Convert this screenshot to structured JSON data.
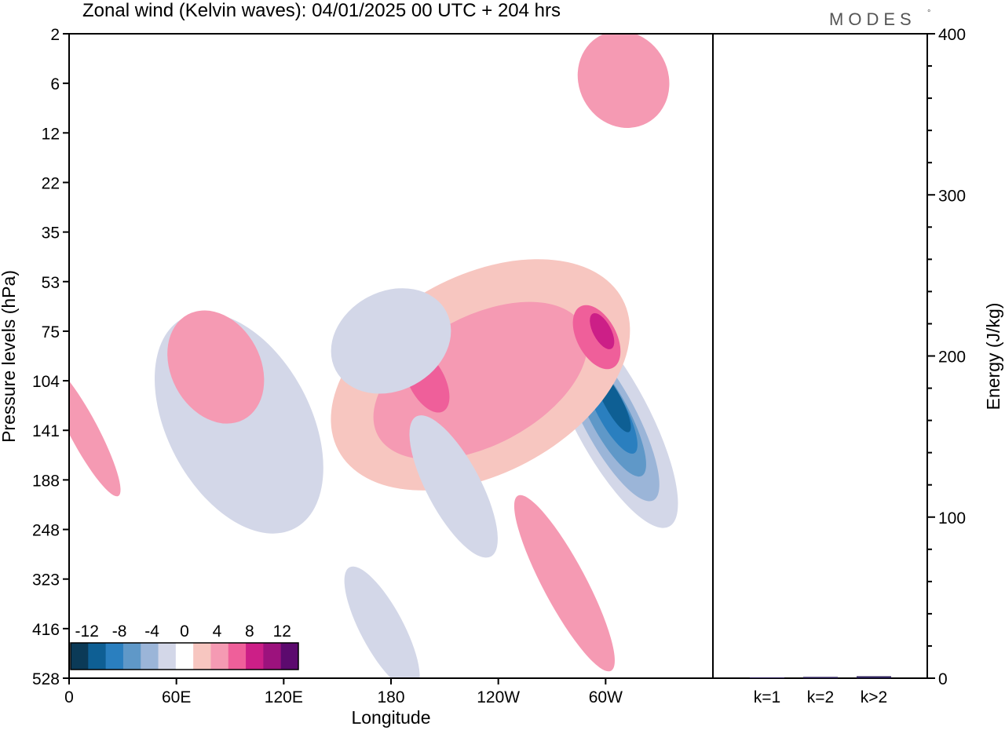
{
  "chart_data": [
    {
      "type": "heatmap",
      "title": "Zonal wind (Kelvin waves):  04/01/2025  00 UTC  + 204 hrs",
      "xlabel": "Longitude",
      "ylabel": "Pressure levels (hPa)",
      "x_ticks": [
        "0",
        "60E",
        "120E",
        "180",
        "120W",
        "60W"
      ],
      "x_tick_values": [
        0,
        60,
        120,
        180,
        240,
        300
      ],
      "xlim": [
        0,
        360
      ],
      "y_ticks": [
        "2",
        "6",
        "12",
        "22",
        "35",
        "53",
        "75",
        "104",
        "141",
        "188",
        "248",
        "323",
        "416",
        "528"
      ],
      "colorbar": {
        "tick_labels": [
          "-12",
          "-8",
          "-4",
          "0",
          "4",
          "8",
          "12"
        ],
        "levels": [
          -14,
          -12,
          -10,
          -8,
          -6,
          -4,
          -2,
          2,
          4,
          6,
          8,
          10,
          12,
          14
        ],
        "colors": [
          "#0b3a57",
          "#0e5f94",
          "#2a7fbf",
          "#5f98c8",
          "#9bb5d8",
          "#d3d7e8",
          "#ffffff",
          "#f7c6c0",
          "#f59ab3",
          "#ef5f9a",
          "#cc1f87",
          "#9c127d",
          "#5c0a6e"
        ]
      },
      "contours": [
        {
          "value": -2,
          "lon": 305,
          "p": 130,
          "dlon": 30,
          "dlev": 3.2
        },
        {
          "value": -4,
          "lon": 303,
          "p": 130,
          "dlon": 21,
          "dlev": 2.5
        },
        {
          "value": -6,
          "lon": 302,
          "p": 130,
          "dlon": 15,
          "dlev": 1.9
        },
        {
          "value": -8,
          "lon": 302,
          "p": 128,
          "dlon": 11,
          "dlev": 1.4
        },
        {
          "value": -10,
          "lon": 303,
          "p": 124,
          "dlon": 8,
          "dlev": 1.0
        },
        {
          "value": -12,
          "lon": 304,
          "p": 118,
          "dlon": 5,
          "dlev": 0.7
        },
        {
          "value": 2,
          "lon": 230,
          "p": 100,
          "dlon": 90,
          "dlev": 2.0
        },
        {
          "value": 4,
          "lon": 230,
          "p": 104,
          "dlon": 65,
          "dlev": 1.3
        },
        {
          "value": 6,
          "lon": 200,
          "p": 104,
          "dlon": 10,
          "dlev": 0.7
        },
        {
          "value": 6,
          "lon": 295,
          "p": 78,
          "dlon": 11,
          "dlev": 0.7
        },
        {
          "value": 8,
          "lon": 298,
          "p": 75,
          "dlon": 5,
          "dlev": 0.4
        },
        {
          "value": -4,
          "lon": 95,
          "p": 135,
          "dlon": 40,
          "dlev": 2.4
        },
        {
          "value": 4,
          "lon": 82,
          "p": 95,
          "dlon": 25,
          "dlev": 1.2
        },
        {
          "value": -4,
          "lon": 180,
          "p": 80,
          "dlon": 35,
          "dlev": 1.0
        },
        {
          "value": -4,
          "lon": 215,
          "p": 195,
          "dlon": 15,
          "dlev": 1.6
        },
        {
          "value": -4,
          "lon": 175,
          "p": 416,
          "dlon": 12,
          "dlev": 1.4
        },
        {
          "value": 4,
          "lon": 277,
          "p": 330,
          "dlon": 12,
          "dlev": 2.0
        },
        {
          "value": 4,
          "lon": 8,
          "p": 141,
          "dlon": 8,
          "dlev": 1.5
        },
        {
          "value": 4,
          "lon": 310,
          "p": 5.5,
          "dlon": 25,
          "dlev": 1.0
        }
      ]
    },
    {
      "type": "bar",
      "ylabel": "Energy (J/kg)",
      "ylim": [
        0,
        400
      ],
      "y_ticks": [
        "0",
        "100",
        "200",
        "300",
        "400"
      ],
      "categories": [
        "k=1",
        "k=2",
        "k>2"
      ],
      "values": [
        0.5,
        0.8,
        1.2
      ]
    }
  ],
  "brand": {
    "logo_text": "MODES",
    "mark": "°"
  }
}
